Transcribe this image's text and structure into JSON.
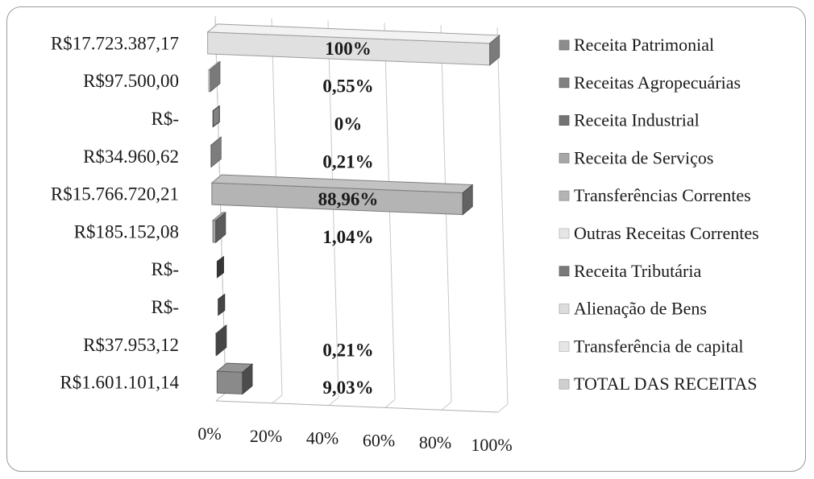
{
  "chart_data": {
    "type": "bar",
    "orientation": "horizontal",
    "style": "3d",
    "categories": [
      "R$17.723.387,17",
      "R$97.500,00",
      "R$-",
      "R$34.960,62",
      "R$15.766.720,21",
      "R$185.152,08",
      "R$-",
      "R$-",
      "R$37.953,12",
      "R$1.601.101,14"
    ],
    "values": [
      100,
      0.55,
      0,
      0.21,
      88.96,
      1.04,
      0,
      0,
      0.21,
      9.03
    ],
    "data_labels": [
      "100%",
      "0,55%",
      "0%",
      "0,21%",
      "88,96%",
      "1,04%",
      "",
      "",
      "0,21%",
      "9,03%"
    ],
    "bar_colors": [
      "#e0e0e0",
      "#dddddd",
      "#d8d8d8",
      "#e4e4e4",
      "#b4b4b4",
      "#a6a6a6",
      "#5a5a5a",
      "#747474",
      "#808080",
      "#8a8a8a"
    ],
    "xaxis_ticks": [
      "0%",
      "20%",
      "40%",
      "60%",
      "80%",
      "100%"
    ],
    "xlim": [
      0,
      100
    ],
    "grid": true,
    "legend_position": "right",
    "legend": [
      {
        "name": "Receita Patrimonial",
        "color": "#8c8c8c"
      },
      {
        "name": "Receitas Agropecuárias",
        "color": "#808080"
      },
      {
        "name": "Receita Industrial",
        "color": "#747474"
      },
      {
        "name": "Receita de Serviços",
        "color": "#a6a6a6"
      },
      {
        "name": "Transferências Correntes",
        "color": "#b4b4b4"
      },
      {
        "name": "Outras Receitas Correntes",
        "color": "#e6e6e6"
      },
      {
        "name": "Receita Tributária",
        "color": "#7a7a7a"
      },
      {
        "name": "Alienação de Bens",
        "color": "#dcdcdc"
      },
      {
        "name": "Transferência de capital",
        "color": "#e6e6e6"
      },
      {
        "name": "TOTAL DAS RECEITAS",
        "color": "#cfcfcf"
      }
    ]
  }
}
